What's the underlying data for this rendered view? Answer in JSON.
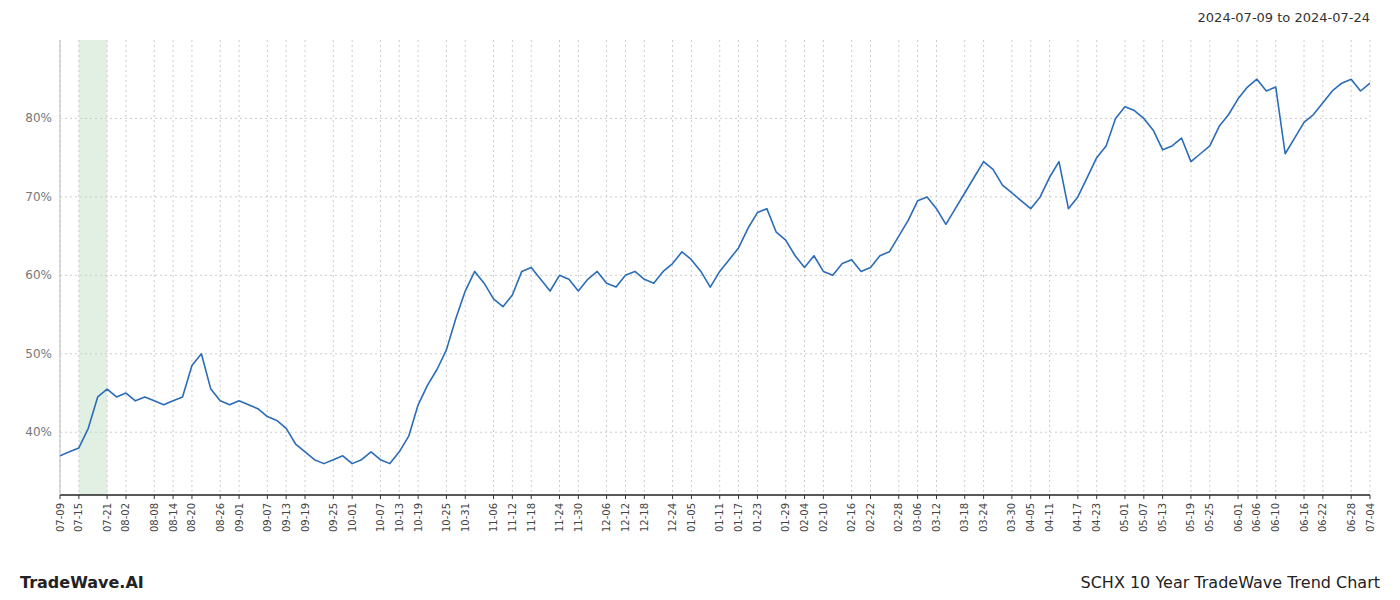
{
  "chart_data": {
    "type": "line",
    "title": "2024-07-09 to 2024-07-24",
    "annotations": [
      "TradeWave.AI",
      "SCHX 10 Year TradeWave Trend Chart"
    ],
    "color": "#2b6cb8",
    "grid": true,
    "ylim": [
      32,
      90
    ],
    "yticks": [
      {
        "value": 40,
        "label": "40%"
      },
      {
        "value": 50,
        "label": "50%"
      },
      {
        "value": 60,
        "label": "60%"
      },
      {
        "value": 70,
        "label": "70%"
      },
      {
        "value": 80,
        "label": "80%"
      }
    ],
    "highlight": {
      "from": "07-15",
      "to": "07-21",
      "color": "#d6ead9"
    },
    "categories": [
      "07-09",
      null,
      "07-15",
      null,
      null,
      "07-21",
      null,
      "08-02",
      null,
      null,
      "08-08",
      null,
      "08-14",
      null,
      "08-20",
      null,
      null,
      "08-26",
      null,
      "09-01",
      null,
      null,
      "09-07",
      null,
      "09-13",
      null,
      "09-19",
      null,
      null,
      "09-25",
      null,
      "10-01",
      null,
      null,
      "10-07",
      null,
      "10-13",
      null,
      "10-19",
      null,
      null,
      "10-25",
      null,
      "10-31",
      null,
      null,
      "11-06",
      null,
      "11-12",
      null,
      "11-18",
      null,
      null,
      "11-24",
      null,
      "11-30",
      null,
      null,
      "12-06",
      null,
      "12-12",
      null,
      "12-18",
      null,
      null,
      "12-24",
      null,
      "01-05",
      null,
      null,
      "01-11",
      null,
      "01-17",
      null,
      "01-23",
      null,
      null,
      "01-29",
      null,
      "02-04",
      null,
      "02-10",
      null,
      null,
      "02-16",
      null,
      "02-22",
      null,
      null,
      "02-28",
      null,
      "03-06",
      null,
      "03-12",
      null,
      null,
      "03-18",
      null,
      "03-24",
      null,
      null,
      "03-30",
      null,
      "04-05",
      null,
      "04-11",
      null,
      null,
      "04-17",
      null,
      "04-23",
      null,
      null,
      "05-01",
      null,
      "05-07",
      null,
      "05-13",
      null,
      null,
      "05-19",
      null,
      "05-25",
      null,
      null,
      "06-01",
      null,
      "06-06",
      null,
      "06-10",
      null,
      null,
      "06-16",
      null,
      "06-22",
      null,
      null,
      "06-28",
      null,
      "07-04"
    ],
    "values": [
      37.0,
      37.5,
      38.0,
      40.5,
      44.5,
      45.5,
      44.5,
      45.0,
      44.0,
      44.5,
      44.0,
      43.5,
      44.0,
      44.5,
      48.5,
      50.0,
      45.5,
      44.0,
      43.5,
      44.0,
      43.5,
      43.0,
      42.0,
      41.5,
      40.5,
      38.5,
      37.5,
      36.5,
      36.0,
      36.5,
      37.0,
      36.0,
      36.5,
      37.5,
      36.5,
      36.0,
      37.5,
      39.5,
      43.5,
      46.0,
      48.0,
      50.5,
      54.5,
      58.0,
      60.5,
      59.0,
      57.0,
      56.0,
      57.5,
      60.5,
      61.0,
      59.5,
      58.0,
      60.0,
      59.5,
      58.0,
      59.5,
      60.5,
      59.0,
      58.5,
      60.0,
      60.5,
      59.5,
      59.0,
      60.5,
      61.5,
      63.0,
      62.0,
      60.5,
      58.5,
      60.5,
      62.0,
      63.5,
      66.0,
      68.0,
      68.5,
      65.5,
      64.5,
      62.5,
      61.0,
      62.5,
      60.5,
      60.0,
      61.5,
      62.0,
      60.5,
      61.0,
      62.5,
      63.0,
      65.0,
      67.0,
      69.5,
      70.0,
      68.5,
      66.5,
      68.5,
      70.5,
      72.5,
      74.5,
      73.5,
      71.5,
      70.5,
      69.5,
      68.5,
      70.0,
      72.5,
      74.5,
      68.5,
      70.0,
      72.5,
      75.0,
      76.5,
      80.0,
      81.5,
      81.0,
      80.0,
      78.5,
      76.0,
      76.5,
      77.5,
      74.5,
      75.5,
      76.5,
      79.0,
      80.5,
      82.5,
      84.0,
      85.0,
      83.5,
      84.0,
      75.5,
      77.5,
      79.5,
      80.5,
      82.0,
      83.5,
      84.5,
      85.0,
      83.5,
      84.5
    ]
  }
}
